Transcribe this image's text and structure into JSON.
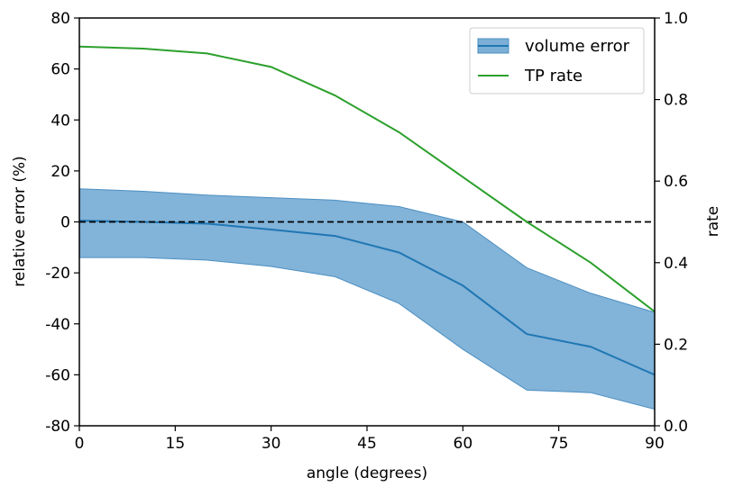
{
  "chart_data": {
    "type": "line",
    "x": [
      0,
      10,
      20,
      30,
      40,
      50,
      60,
      70,
      80,
      90
    ],
    "xlabel": "angle (degrees)",
    "xlim": [
      0,
      90
    ],
    "xticks": [
      0,
      15,
      30,
      45,
      60,
      75,
      90
    ],
    "xtick_labels": [
      "0",
      "15",
      "30",
      "45",
      "60",
      "75",
      "90"
    ],
    "left_axis": {
      "label": "relative error (%)",
      "lim": [
        -80,
        80
      ],
      "ticks": [
        80,
        60,
        40,
        20,
        0,
        -20,
        -40,
        -60,
        -80
      ],
      "tick_labels": [
        "80",
        "60",
        "40",
        "20",
        "0",
        "-20",
        "-40",
        "-60",
        "-80"
      ]
    },
    "right_axis": {
      "label": "rate",
      "lim": [
        0.0,
        1.0
      ],
      "ticks": [
        1.0,
        0.8,
        0.6,
        0.4,
        0.2,
        0.0
      ],
      "tick_labels": [
        "1.0",
        "0.8",
        "0.6",
        "0.4",
        "0.2",
        "0.0"
      ]
    },
    "series": [
      {
        "name": "volume error",
        "axis": "left",
        "color": "#1f77b4",
        "band_color": "#7bafd6",
        "mean": [
          0.5,
          0.0,
          -0.7,
          -3,
          -5.5,
          -12,
          -25,
          -44,
          -49,
          -60
        ],
        "upper": [
          13,
          12,
          10.5,
          9.5,
          8.5,
          6,
          0,
          -18,
          -28,
          -35.5
        ],
        "lower": [
          -14,
          -14,
          -15,
          -17.5,
          -21.5,
          -32,
          -50,
          -66,
          -67,
          -73.5
        ]
      },
      {
        "name": "TP rate",
        "axis": "right",
        "color": "#2ca02c",
        "values": [
          0.93,
          0.925,
          0.913,
          0.88,
          0.81,
          0.72,
          0.61,
          0.5,
          0.4,
          0.28
        ]
      }
    ],
    "reference_line": {
      "axis": "left",
      "value": 0,
      "style": "dashed",
      "color": "#000000"
    },
    "legend": {
      "position": "top-right",
      "entries": [
        "volume error",
        "TP rate"
      ]
    }
  }
}
